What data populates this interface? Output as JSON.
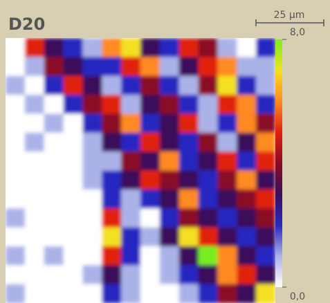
{
  "chart_data": {
    "type": "heatmap",
    "title": "D20",
    "scale_bar": "25 µm",
    "zlim": [
      0,
      8
    ],
    "zticks": [
      {
        "value": 8,
        "label": "8,0"
      },
      {
        "value": 0,
        "label": "0,0"
      }
    ],
    "colorscale": [
      "#ffffff",
      "#aab2e8",
      "#2828c0",
      "#3a0f5a",
      "#8a0a25",
      "#e02010",
      "#ff8a20",
      "#f4e020",
      "#78ee20"
    ],
    "values": [
      [
        0,
        5,
        3,
        2,
        1,
        6,
        7,
        3,
        2,
        5,
        4,
        1,
        0,
        2
      ],
      [
        0,
        1,
        4,
        3,
        2,
        2,
        5,
        6,
        1,
        3,
        5,
        6,
        1,
        1
      ],
      [
        1,
        0,
        2,
        5,
        3,
        1,
        2,
        4,
        2,
        1,
        4,
        7,
        2,
        1
      ],
      [
        0,
        1,
        0,
        2,
        4,
        5,
        1,
        3,
        4,
        2,
        1,
        5,
        6,
        2
      ],
      [
        0,
        0,
        1,
        0,
        2,
        4,
        6,
        2,
        3,
        5,
        1,
        2,
        6,
        4
      ],
      [
        0,
        1,
        0,
        0,
        1,
        3,
        2,
        5,
        3,
        2,
        4,
        1,
        3,
        6
      ],
      [
        0,
        0,
        0,
        0,
        1,
        1,
        4,
        3,
        6,
        2,
        3,
        5,
        2,
        5
      ],
      [
        0,
        0,
        0,
        0,
        1,
        2,
        3,
        5,
        4,
        3,
        2,
        4,
        6,
        3
      ],
      [
        0,
        0,
        0,
        0,
        0,
        2,
        1,
        2,
        3,
        6,
        2,
        3,
        4,
        5
      ],
      [
        1,
        0,
        0,
        0,
        0,
        5,
        1,
        0,
        2,
        4,
        3,
        2,
        3,
        4
      ],
      [
        0,
        0,
        0,
        0,
        0,
        7,
        2,
        1,
        3,
        7,
        5,
        3,
        2,
        3
      ],
      [
        1,
        0,
        1,
        0,
        0,
        5,
        2,
        0,
        1,
        3,
        8,
        6,
        3,
        2
      ],
      [
        0,
        0,
        0,
        0,
        1,
        3,
        1,
        0,
        1,
        2,
        3,
        6,
        5,
        3
      ],
      [
        1,
        0,
        0,
        0,
        0,
        2,
        1,
        0,
        0,
        1,
        2,
        4,
        3,
        7
      ]
    ]
  }
}
